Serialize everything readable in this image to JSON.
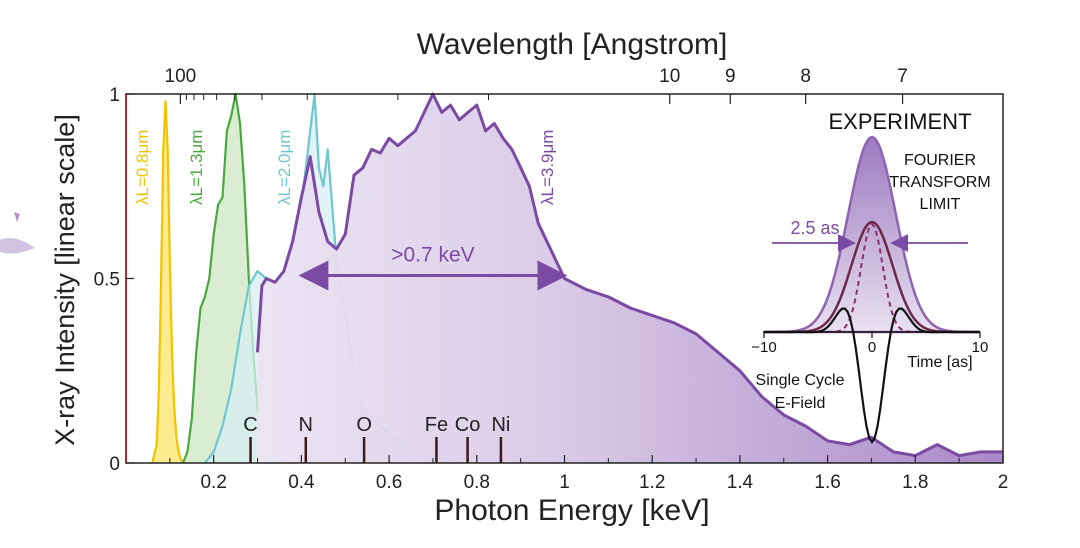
{
  "chart_data": {
    "type": "area",
    "xlabel": "Photon Energy [keV]",
    "ylabel": "X-ray Intensity [linear scale]",
    "top_axis_label": "Wavelength [Angstrom]",
    "xlim": [
      0,
      2
    ],
    "ylim": [
      0,
      1
    ],
    "x_ticks": [
      "0.2",
      "0.4",
      "0.6",
      "0.8",
      "1",
      "1.2",
      "1.4",
      "1.6",
      "1.8",
      "2"
    ],
    "y_ticks": [
      "0",
      "0.5",
      "1"
    ],
    "top_ticks": [
      {
        "label": "100",
        "energy": 0.124
      },
      {
        "label": "10",
        "energy": 1.24
      },
      {
        "label": "9",
        "energy": 1.378
      },
      {
        "label": "8",
        "energy": 1.55
      },
      {
        "label": "7",
        "energy": 1.771
      }
    ],
    "series": [
      {
        "name": "λL=0.8μm",
        "color": "#f2c400",
        "fill": "#fbe46a",
        "x": [
          0.06,
          0.07,
          0.075,
          0.08,
          0.085,
          0.09,
          0.095,
          0.1,
          0.105,
          0.11,
          0.115,
          0.12,
          0.125,
          0.13
        ],
        "y": [
          0,
          0.05,
          0.2,
          0.5,
          0.85,
          0.98,
          0.85,
          0.55,
          0.3,
          0.15,
          0.07,
          0.03,
          0.01,
          0
        ]
      },
      {
        "name": "λL=1.3μm",
        "color": "#4aa83f",
        "fill": "#cde6c2",
        "x": [
          0.13,
          0.14,
          0.15,
          0.16,
          0.17,
          0.18,
          0.19,
          0.2,
          0.21,
          0.22,
          0.23,
          0.24,
          0.25,
          0.26,
          0.27,
          0.28,
          0.29,
          0.3,
          0.31,
          0.32,
          0.33
        ],
        "y": [
          0,
          0.03,
          0.12,
          0.3,
          0.42,
          0.45,
          0.5,
          0.62,
          0.7,
          0.72,
          0.9,
          0.94,
          1.0,
          0.92,
          0.75,
          0.5,
          0.3,
          0.15,
          0.06,
          0.02,
          0
        ]
      },
      {
        "name": "λL=2.0μm",
        "color": "#6fc7cf",
        "fill": "#d7eff1",
        "x": [
          0.18,
          0.2,
          0.22,
          0.24,
          0.26,
          0.28,
          0.3,
          0.32,
          0.34,
          0.36,
          0.38,
          0.4,
          0.42,
          0.43,
          0.44,
          0.45,
          0.46,
          0.48,
          0.5,
          0.52,
          0.54,
          0.56,
          0.58,
          0.6,
          0.62,
          0.64,
          0.66
        ],
        "y": [
          0,
          0.03,
          0.1,
          0.2,
          0.35,
          0.48,
          0.52,
          0.5,
          0.45,
          0.52,
          0.6,
          0.7,
          0.9,
          1.0,
          0.8,
          0.75,
          0.85,
          0.55,
          0.4,
          0.25,
          0.15,
          0.12,
          0.1,
          0.08,
          0.06,
          0.03,
          0
        ]
      },
      {
        "name": "λL=3.9μm",
        "color": "#7b4aa3",
        "fill": "#d8c8e6",
        "x": [
          0.3,
          0.31,
          0.32,
          0.34,
          0.36,
          0.38,
          0.4,
          0.42,
          0.44,
          0.46,
          0.48,
          0.5,
          0.52,
          0.54,
          0.56,
          0.58,
          0.6,
          0.62,
          0.64,
          0.66,
          0.68,
          0.7,
          0.72,
          0.74,
          0.76,
          0.78,
          0.8,
          0.82,
          0.84,
          0.86,
          0.88,
          0.9,
          0.92,
          0.94,
          0.96,
          0.98,
          1.0,
          1.05,
          1.1,
          1.15,
          1.2,
          1.25,
          1.3,
          1.35,
          1.4,
          1.45,
          1.5,
          1.55,
          1.6,
          1.65,
          1.7,
          1.75,
          1.8,
          1.85,
          1.9,
          1.95,
          2.0
        ],
        "y": [
          0.3,
          0.48,
          0.5,
          0.49,
          0.52,
          0.6,
          0.72,
          0.83,
          0.68,
          0.6,
          0.58,
          0.62,
          0.78,
          0.8,
          0.85,
          0.84,
          0.88,
          0.86,
          0.88,
          0.9,
          0.95,
          1.0,
          0.95,
          0.97,
          0.93,
          0.95,
          0.97,
          0.9,
          0.92,
          0.88,
          0.85,
          0.8,
          0.75,
          0.65,
          0.6,
          0.55,
          0.5,
          0.47,
          0.45,
          0.42,
          0.4,
          0.38,
          0.35,
          0.3,
          0.25,
          0.18,
          0.13,
          0.1,
          0.06,
          0.05,
          0.07,
          0.03,
          0.02,
          0.05,
          0.02,
          0.03,
          0.03
        ]
      }
    ],
    "annotations": {
      "range_label": ">0.7 keV",
      "range_from": 0.4,
      "range_to": 1.0,
      "range_y": 0.5,
      "elements": [
        {
          "label": "C",
          "energy": 0.284
        },
        {
          "label": "N",
          "energy": 0.41
        },
        {
          "label": "O",
          "energy": 0.543
        },
        {
          "label": "Fe",
          "energy": 0.708
        },
        {
          "label": "Co",
          "energy": 0.779
        },
        {
          "label": "Ni",
          "energy": 0.855
        }
      ]
    },
    "inset": {
      "title": "EXPERIMENT",
      "ftl_label": "FOURIER\nTRANSFORM\nLIMIT",
      "width_label": "2.5 as",
      "xlabel": "Time [as]",
      "x_ticks": [
        "−10",
        "0",
        "10"
      ],
      "efield_label": "Single Cycle\nE-Field"
    }
  }
}
